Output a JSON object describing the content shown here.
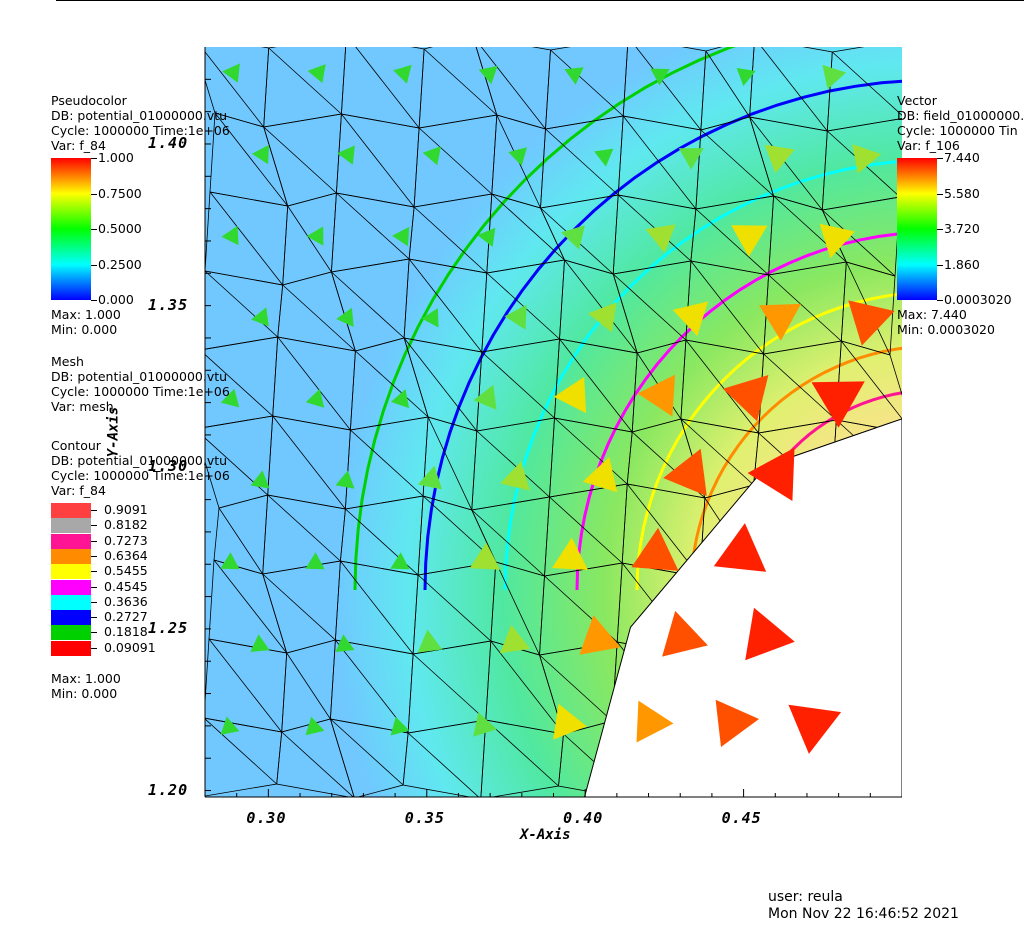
{
  "chart_data": {
    "type": "field_plot",
    "xlabel": "X-Axis",
    "ylabel": "Y-Axis",
    "xlim": [
      0.28,
      0.5
    ],
    "ylim": [
      1.198,
      1.43
    ],
    "xticks": [
      "0.30",
      "0.35",
      "0.40",
      "0.45"
    ],
    "yticks": [
      "1.20",
      "1.25",
      "1.30",
      "1.35",
      "1.40"
    ],
    "hole_boundary": [
      [
        0.5,
        1.315
      ],
      [
        0.4573,
        1.3005
      ],
      [
        0.4143,
        1.2505
      ],
      [
        0.3998,
        1.198
      ]
    ],
    "contours": [
      {
        "level": 0.9091,
        "color": "#ff4040"
      },
      {
        "level": 0.8182,
        "color": "#a8a8a8"
      },
      {
        "level": 0.7273,
        "color": "#ff1493"
      },
      {
        "level": 0.6364,
        "color": "#ff8c00"
      },
      {
        "level": 0.5455,
        "color": "#ffff00"
      },
      {
        "level": 0.4545,
        "color": "#ff00ff"
      },
      {
        "level": 0.3636,
        "color": "#00ffff"
      },
      {
        "level": 0.2727,
        "color": "#0000ff"
      },
      {
        "level": 0.1818,
        "color": "#00d000"
      },
      {
        "level": 0.09091,
        "color": "#ff0000"
      }
    ],
    "pseudocolor": {
      "title": "Pseudocolor",
      "db": "DB: potential_01000000.vtu",
      "cycle": "Cycle: 1000000  Time:1e+06",
      "var": "Var: f_84",
      "ticks": [
        "1.000",
        "0.7500",
        "0.5000",
        "0.2500",
        "0.000"
      ],
      "max": "Max:  1.000",
      "min": "Min:  0.000"
    },
    "mesh": {
      "title": "Mesh",
      "db": "DB: potential_01000000.vtu",
      "cycle": "Cycle: 1000000  Time:1e+06",
      "var": "Var: mesh"
    },
    "contour_legend": {
      "title": "Contour",
      "db": "DB: potential_01000000.vtu",
      "cycle": "Cycle: 1000000  Time:1e+06",
      "var": "Var: f_84",
      "max": "Max:  1.000",
      "min": "Min:  0.000"
    },
    "vector": {
      "title": "Vector",
      "db": "DB: field_01000000.",
      "cycle": "Cycle: 1000000  Tin",
      "var": "Var: f_106",
      "ticks": [
        "7.440",
        "5.580",
        "3.720",
        "1.860",
        "0.0003020"
      ],
      "max": "Max:  7.440",
      "min": "Min:  0.0003020"
    }
  },
  "footer": {
    "user": "user: reula",
    "date": "Mon Nov 22 16:46:52 2021"
  }
}
